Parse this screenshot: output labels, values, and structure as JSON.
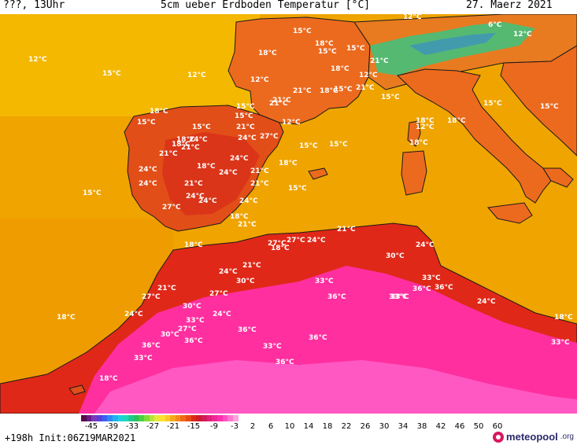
{
  "header": {
    "left": "???, 13Uhr",
    "title": "5cm ueber Erdboden Temperatur [°C]",
    "date": "27. Maerz 2021"
  },
  "map": {
    "colors": {
      "sea": "#f0a400",
      "sea_cool": "#f7c800",
      "land_warm": "#ea5a1a",
      "land_hot": "#de2a12",
      "desert": "#ff2fa0",
      "desert_hot": "#ff5fc8",
      "alps_cool": "#46c07a",
      "coast": "#1a1a1a",
      "labels": "#ffffff"
    },
    "labels": [
      "15°C",
      "18°C",
      "15°C",
      "15°C",
      "21°C",
      "12°C",
      "6°C",
      "12°C",
      "18°C",
      "12°C",
      "15°C",
      "12°C",
      "12°C",
      "18°C",
      "21°C",
      "18°C",
      "12°C",
      "21°C",
      "15°C",
      "21°C",
      "15°C",
      "15°C",
      "18°C",
      "15°C",
      "12°C",
      "15°C",
      "18°C",
      "21°C",
      "18°C",
      "18°C",
      "15°C",
      "15°C",
      "18°C",
      "15°C",
      "21°C",
      "12°C",
      "15°C",
      "24°C",
      "24°C",
      "18°C",
      "27°C",
      "21°C",
      "24°C",
      "21°C",
      "18°C",
      "24°C",
      "21°C",
      "18°C",
      "15°C",
      "15°C",
      "24°C",
      "21°C",
      "24°C",
      "21°C",
      "24°C",
      "27°C",
      "24°C",
      "24°C",
      "15°C",
      "21°C",
      "18°C",
      "18°C",
      "21°C",
      "24°C",
      "27°C",
      "21°C",
      "24°C",
      "18°C",
      "27°C",
      "30°C",
      "24°C",
      "30°C",
      "33°C",
      "36°C",
      "33°C",
      "33°C",
      "36°C",
      "36°C",
      "30°C",
      "27°C",
      "24°C",
      "27°C",
      "36°C",
      "33°C",
      "36°C",
      "33°C",
      "18°C",
      "21°C",
      "27°C",
      "24°C",
      "18°C",
      "36°C",
      "36°C",
      "33°C",
      "30°C",
      "36°C",
      "33°C",
      "24°C",
      "18°C",
      "33°C"
    ]
  },
  "legend": {
    "colors": [
      "#5a0a4a",
      "#6a1a8a",
      "#7a3ab8",
      "#5a3ee0",
      "#3a60f0",
      "#2f88f5",
      "#22b0f0",
      "#1ed0e0",
      "#20d8b8",
      "#20c890",
      "#28c060",
      "#4ad040",
      "#80dc38",
      "#b8e438",
      "#e8e838",
      "#fde030",
      "#fcc828",
      "#f7a820",
      "#f48a1a",
      "#f06a16",
      "#e84a14",
      "#dc2a12",
      "#d01a2a",
      "#d01a5a",
      "#e0207a",
      "#f02896",
      "#ff30ac",
      "#ff50c0",
      "#ff78d0",
      "#ffa0e0"
    ],
    "ticks": [
      "-45",
      "-39",
      "-33",
      "-27",
      "-21",
      "-15",
      "-9",
      "-3",
      "2",
      "6",
      "10",
      "14",
      "18",
      "22",
      "26",
      "30",
      "34",
      "38",
      "42",
      "46",
      "50",
      "60"
    ]
  },
  "footer": {
    "run": "+198h Init:06Z19MAR2021",
    "brand": "meteopool",
    "tld": ".org"
  }
}
